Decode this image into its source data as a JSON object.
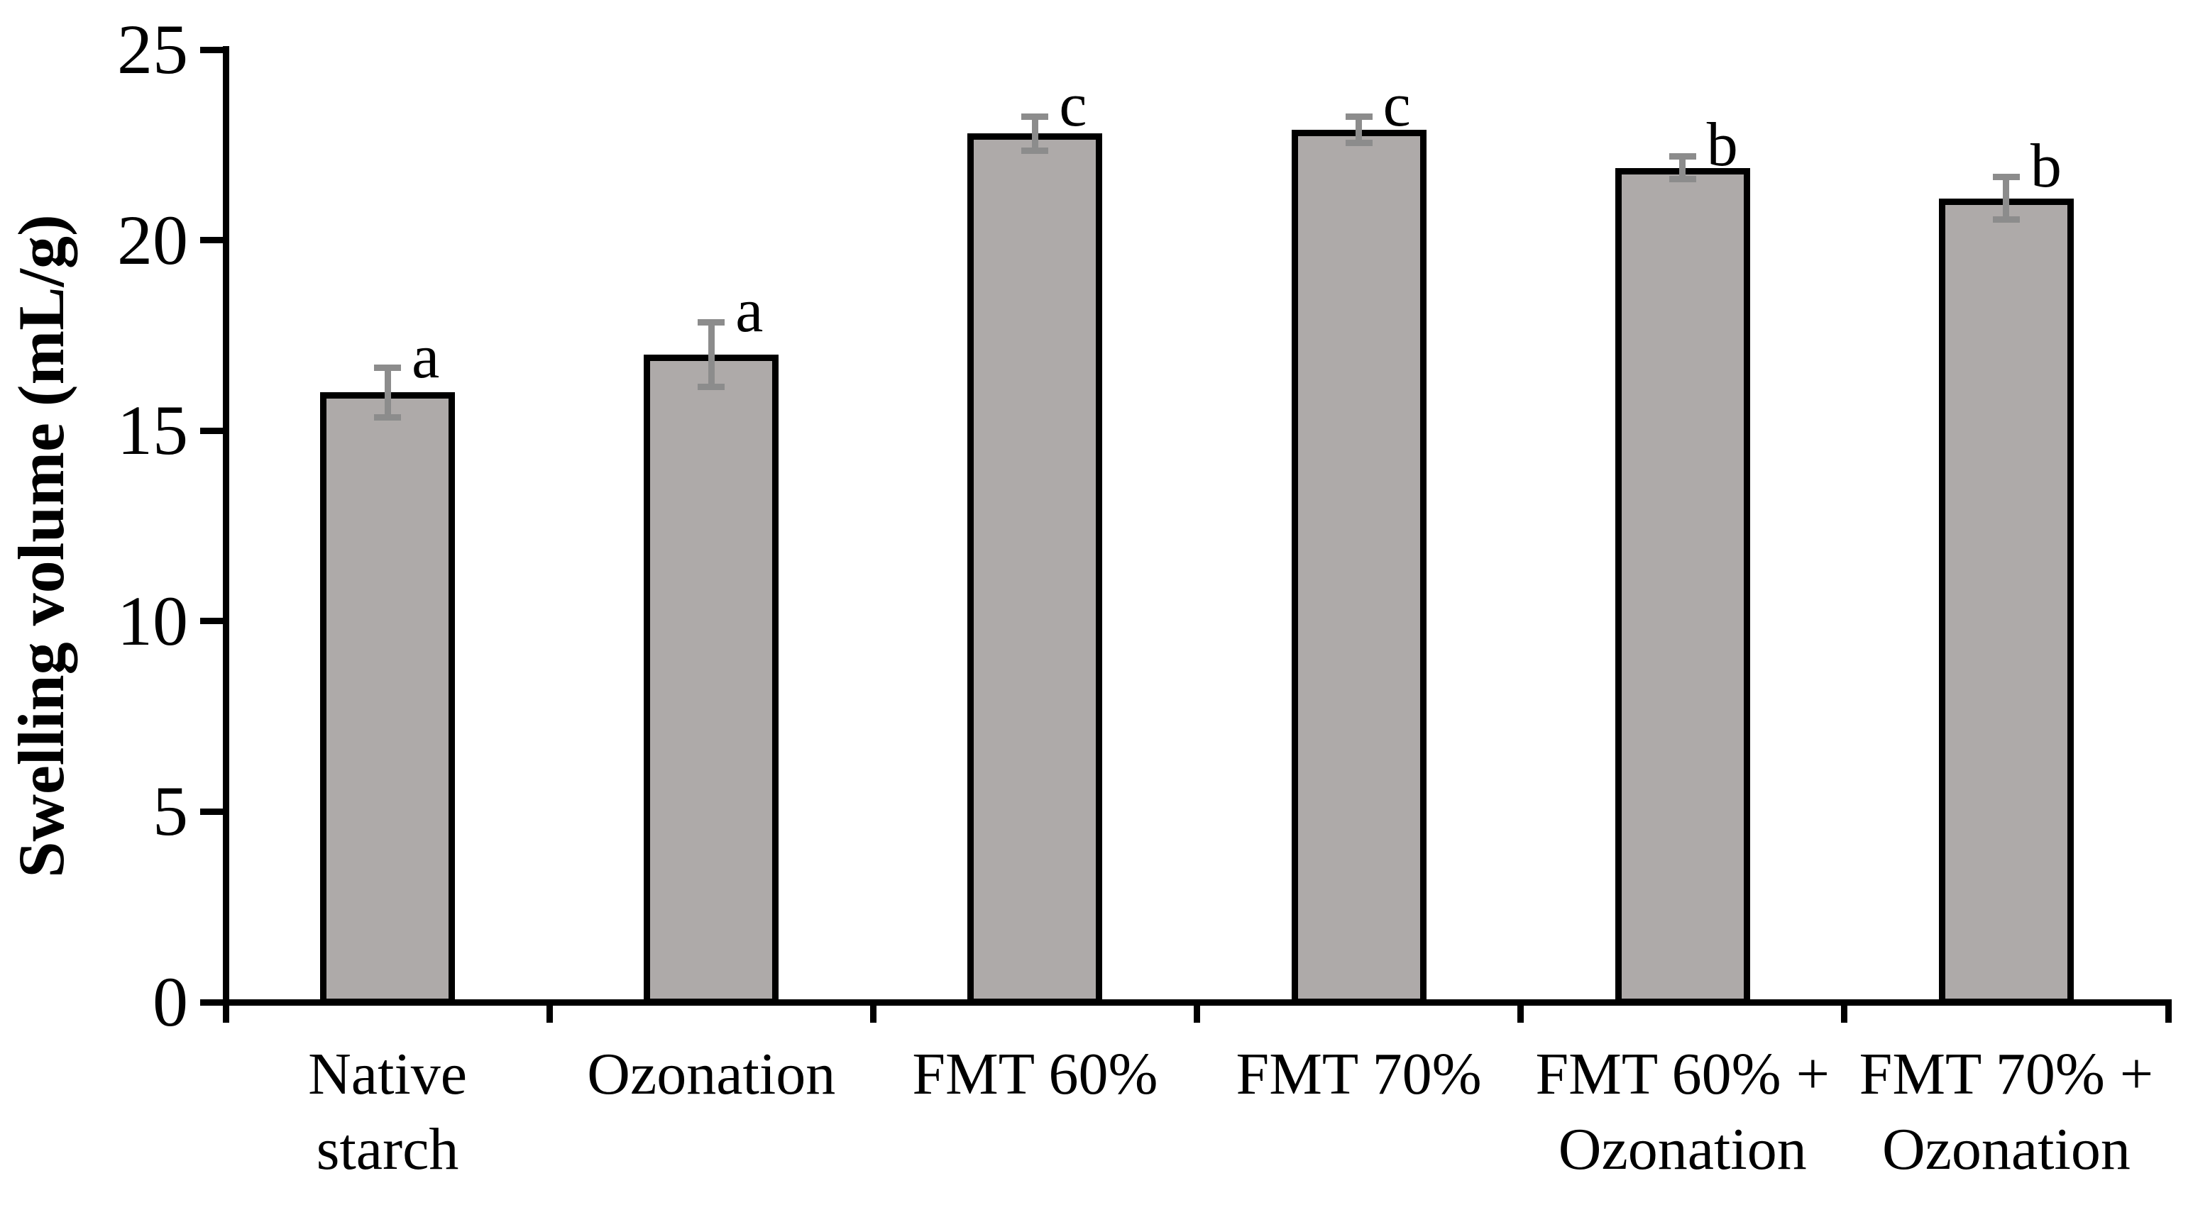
{
  "chart_data": {
    "type": "bar",
    "title": "",
    "ylabel": "Swelling volume (mL/g)",
    "xlabel": "",
    "ylim": [
      0,
      25
    ],
    "yticks": [
      0,
      5,
      10,
      15,
      20,
      25
    ],
    "grid": false,
    "legend": null,
    "bar_fill_color": "#AEAAA9",
    "bar_border_color": "#000000",
    "error_bar_color": "#8C8C8C",
    "axis_color": "#000000",
    "categories": [
      "Native starch",
      "Ozonation",
      "FMT 60%",
      "FMT 70%",
      "FMT 60% + Ozonation",
      "FMT 70% + Ozonation"
    ],
    "category_label_lines": [
      [
        "Native",
        "starch"
      ],
      [
        "Ozonation"
      ],
      [
        "FMT 60%"
      ],
      [
        "FMT 70%"
      ],
      [
        "FMT 60% +",
        "Ozonation"
      ],
      [
        "FMT 70% +",
        "Ozonation"
      ]
    ],
    "values": [
      16.0,
      17.0,
      22.8,
      22.9,
      21.9,
      21.1
    ],
    "errors": [
      0.65,
      0.85,
      0.45,
      0.35,
      0.3,
      0.55
    ],
    "significance_letters": [
      "a",
      "a",
      "c",
      "c",
      "b",
      "b"
    ]
  }
}
